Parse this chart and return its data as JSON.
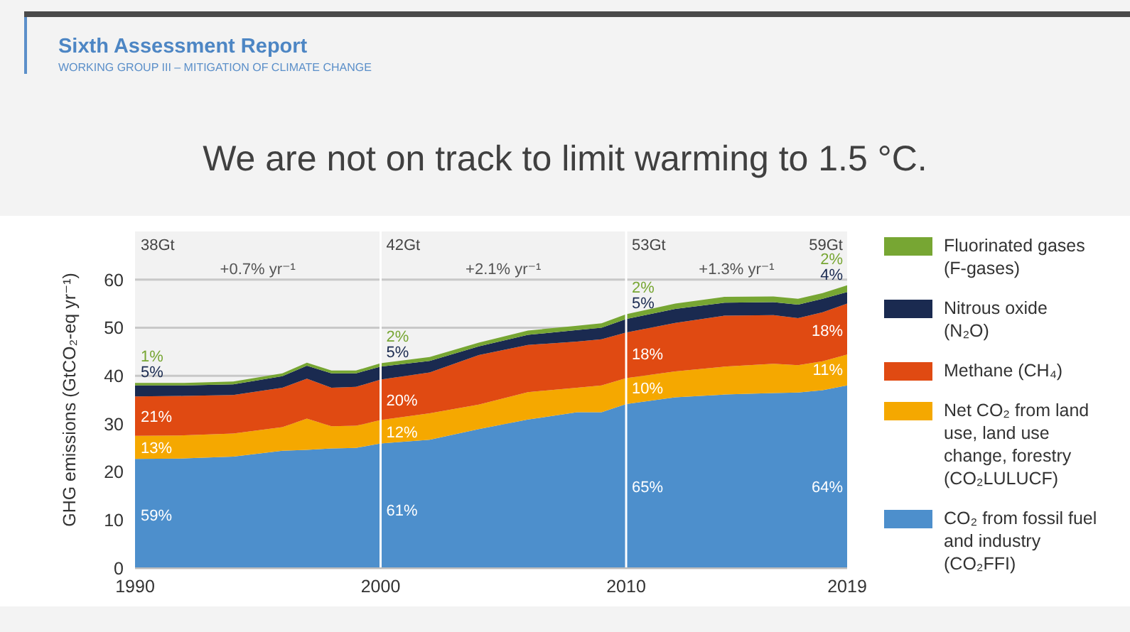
{
  "chart_data": {
    "type": "area",
    "stacked": true,
    "title": "We are not on track to limit warming to 1.5 °C.",
    "ylabel": "GHG emissions (GtCO₂-eq yr⁻¹)",
    "x": [
      1990,
      1992,
      1994,
      1996,
      1997,
      1998,
      1999,
      2000,
      2002,
      2004,
      2006,
      2008,
      2009,
      2010,
      2012,
      2014,
      2016,
      2017,
      2018,
      2019
    ],
    "series": [
      {
        "name": "CO₂ from fossil fuel and industry (CO₂FFI)",
        "color": "#4d8fcc",
        "values": [
          22.7,
          22.8,
          23.2,
          24.4,
          24.6,
          24.9,
          25.0,
          25.9,
          26.7,
          28.9,
          30.9,
          32.4,
          32.4,
          34.1,
          35.5,
          36.1,
          36.4,
          36.5,
          37.0,
          38.0
        ]
      },
      {
        "name": "Net CO₂ from land use, land use change, forestry (CO₂LULUCF)",
        "color": "#f5a800",
        "values": [
          4.8,
          4.8,
          4.8,
          4.9,
          6.5,
          4.6,
          4.6,
          4.9,
          5.5,
          5.1,
          5.7,
          5.1,
          5.6,
          5.4,
          5.4,
          5.8,
          6.1,
          5.7,
          6.0,
          6.4
        ]
      },
      {
        "name": "Methane (CH₄)",
        "color": "#e04a12",
        "values": [
          8.2,
          8.2,
          8.0,
          8.2,
          8.3,
          8.0,
          8.1,
          8.4,
          8.5,
          10.3,
          9.8,
          9.6,
          9.6,
          9.5,
          10.1,
          10.6,
          10.1,
          9.8,
          10.2,
          10.6
        ]
      },
      {
        "name": "Nitrous oxide (N₂O)",
        "color": "#1a2a50",
        "values": [
          2.3,
          2.2,
          2.2,
          2.4,
          2.7,
          3.0,
          2.8,
          2.7,
          2.4,
          1.8,
          2.1,
          2.4,
          2.4,
          2.8,
          2.9,
          2.7,
          2.7,
          2.8,
          2.8,
          2.4
        ]
      },
      {
        "name": "Fluorinated gases (F-gases)",
        "color": "#77a633",
        "values": [
          0.5,
          0.5,
          0.6,
          0.6,
          0.6,
          0.6,
          0.6,
          0.7,
          0.8,
          0.8,
          0.9,
          0.9,
          0.9,
          1.0,
          1.1,
          1.2,
          1.2,
          1.2,
          1.2,
          1.4
        ]
      }
    ],
    "xlim": [
      1990,
      2019
    ],
    "xticks": [
      1990,
      2000,
      2010,
      2019
    ],
    "ylim": [
      0,
      70
    ],
    "yticks": [
      0,
      10,
      20,
      30,
      40,
      50,
      60
    ],
    "grid": "y",
    "legend": "right",
    "ref_lines": [
      {
        "axis": "x",
        "value": 2000,
        "color": "#ffffff"
      },
      {
        "axis": "x",
        "value": 2010,
        "color": "#ffffff"
      }
    ],
    "annotations": [
      "Sixth Assessment Report",
      "WORKING GROUP III – MITIGATION OF CLIMATE CHANGE",
      "38Gt",
      "42Gt",
      "53Gt",
      "59Gt",
      "+0.7% yr⁻¹",
      "+2.1% yr⁻¹",
      "+1.3% yr⁻¹",
      {
        "text": "1%",
        "x": 1990,
        "y": 38.5
      },
      {
        "text": "5%",
        "x": 1990,
        "y": 38.0
      },
      {
        "text": "21%",
        "x": 1990,
        "y": 31.5
      },
      {
        "text": "13%",
        "x": 1990,
        "y": 25
      },
      {
        "text": "59%",
        "x": 1990,
        "y": 11
      },
      {
        "text": "2%",
        "x": 2000,
        "y": 42.6
      },
      {
        "text": "5%",
        "x": 2000,
        "y": 41.9
      },
      {
        "text": "20%",
        "x": 2000,
        "y": 35
      },
      {
        "text": "12%",
        "x": 2000,
        "y": 28.3
      },
      {
        "text": "61%",
        "x": 2000,
        "y": 12
      },
      {
        "text": "2%",
        "x": 2010,
        "y": 52.8
      },
      {
        "text": "5%",
        "x": 2010,
        "y": 51.8
      },
      {
        "text": "18%",
        "x": 2010,
        "y": 44.5
      },
      {
        "text": "10%",
        "x": 2010,
        "y": 37.5
      },
      {
        "text": "65%",
        "x": 2010,
        "y": 17
      },
      {
        "text": "2%",
        "x": 2019,
        "y": 58.8
      },
      {
        "text": "4%",
        "x": 2019,
        "y": 57.4
      },
      {
        "text": "18%",
        "x": 2019,
        "y": 49.5
      },
      {
        "text": "11%",
        "x": 2019,
        "y": 41.3
      },
      {
        "text": "64%",
        "x": 2019,
        "y": 17
      }
    ]
  }
}
